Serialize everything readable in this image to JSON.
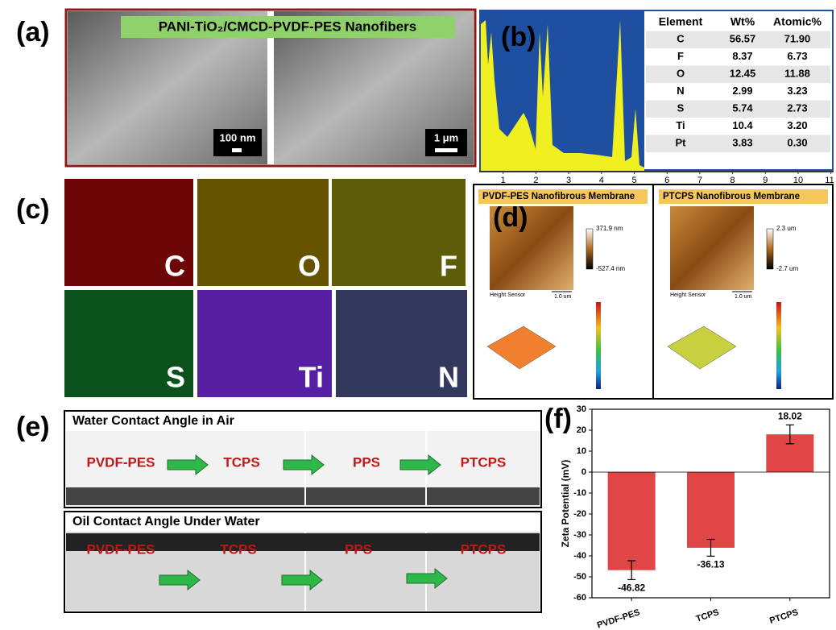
{
  "panel_a": {
    "label": "(a)",
    "title": "PANI-TiO₂/CMCD-PVDF-PES Nanofibers",
    "scale_bars": [
      "100 nm",
      "1 μm"
    ]
  },
  "panel_b": {
    "label": "(b)",
    "table": {
      "header": [
        "Element",
        "Wt%",
        "Atomic%"
      ],
      "rows": [
        [
          "C",
          "56.57",
          "71.90"
        ],
        [
          "F",
          "8.37",
          "6.73"
        ],
        [
          "O",
          "12.45",
          "11.88"
        ],
        [
          "N",
          "2.99",
          "3.23"
        ],
        [
          "S",
          "5.74",
          "2.73"
        ],
        [
          "Ti",
          "10.4",
          "3.20"
        ],
        [
          "Pt",
          "3.83",
          "0.30"
        ]
      ]
    },
    "xticks": [
      1,
      2,
      3,
      4,
      5,
      6,
      7,
      8,
      9,
      10,
      11
    ]
  },
  "panel_c": {
    "label": "(c)",
    "elements": [
      "C",
      "O",
      "F",
      "S",
      "Ti",
      "N"
    ]
  },
  "panel_d": {
    "label": "(d)",
    "membranes": [
      {
        "title": "PVDF-PES Nanofibrous Membrane",
        "scale_max": "371.9 nm",
        "scale_min": "-527.4 nm",
        "sensor": "Height Sensor",
        "scale_bar": "1.0 um"
      },
      {
        "title": "PTCPS Nanofibrous Membrane",
        "scale_max": "2.3 um",
        "scale_min": "-2.7 um",
        "sensor": "Height Sensor",
        "scale_bar": "1.0 um"
      }
    ]
  },
  "panel_e": {
    "label": "(e)",
    "rows": [
      {
        "title": "Water Contact Angle in Air",
        "samples": [
          "PVDF-PES",
          "TCPS",
          "PPS",
          "PTCPS"
        ]
      },
      {
        "title": "Oil Contact Angle Under Water",
        "samples": [
          "PVDF-PES",
          "TCPS",
          "PPS",
          "PTCPS"
        ]
      }
    ]
  },
  "chart_data": {
    "type": "bar",
    "panel_label": "(f)",
    "ylabel": "Zeta Potential (mV)",
    "categories": [
      "PVDF-PES",
      "TCPS",
      "PTCPS"
    ],
    "values": [
      -46.82,
      -36.13,
      18.02
    ],
    "errors": [
      4.5,
      4,
      4.5
    ],
    "color": "#e04646",
    "ylim": [
      -60,
      30
    ],
    "yticks": [
      -60,
      -50,
      -40,
      -30,
      -20,
      -10,
      0,
      10,
      20,
      30
    ]
  }
}
